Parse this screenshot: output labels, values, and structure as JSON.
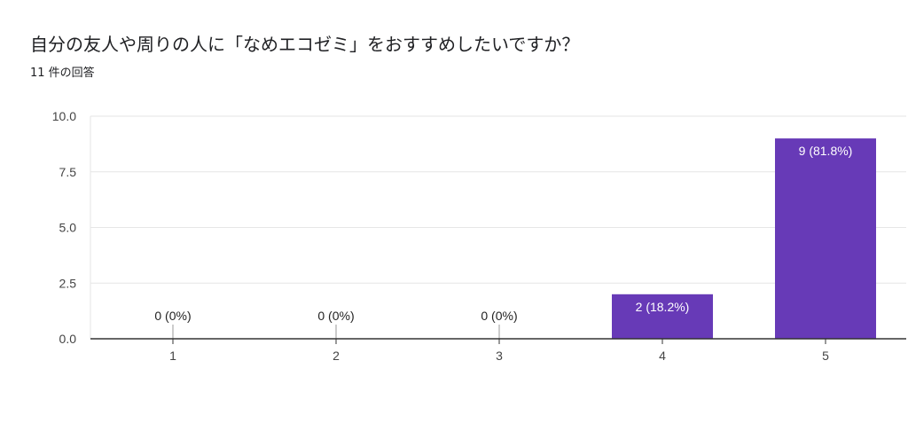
{
  "question": {
    "title": "自分の友人や周りの人に「なめエコゼミ」をおすすめしたいですか？",
    "response_count": "11 件の回答"
  },
  "colors": {
    "bar": "#673ab7",
    "axis": "#333333",
    "grid": "#e6e6e6",
    "label_inside": "#ffffff",
    "label_outside": "#222222"
  },
  "chart_data": {
    "type": "bar",
    "categories": [
      "1",
      "2",
      "3",
      "4",
      "5"
    ],
    "values": [
      0,
      0,
      0,
      2,
      9
    ],
    "data_labels": [
      "0 (0%)",
      "0 (0%)",
      "0 (0%)",
      "2 (18.2%)",
      "9 (81.8%)"
    ],
    "yticks": [
      0,
      2.5,
      5,
      7.5,
      10
    ],
    "ytick_labels": [
      "0.0",
      "2.5",
      "5.0",
      "7.5",
      "10.0"
    ],
    "ylim": [
      0,
      10
    ],
    "grid": true,
    "legend": "none"
  }
}
